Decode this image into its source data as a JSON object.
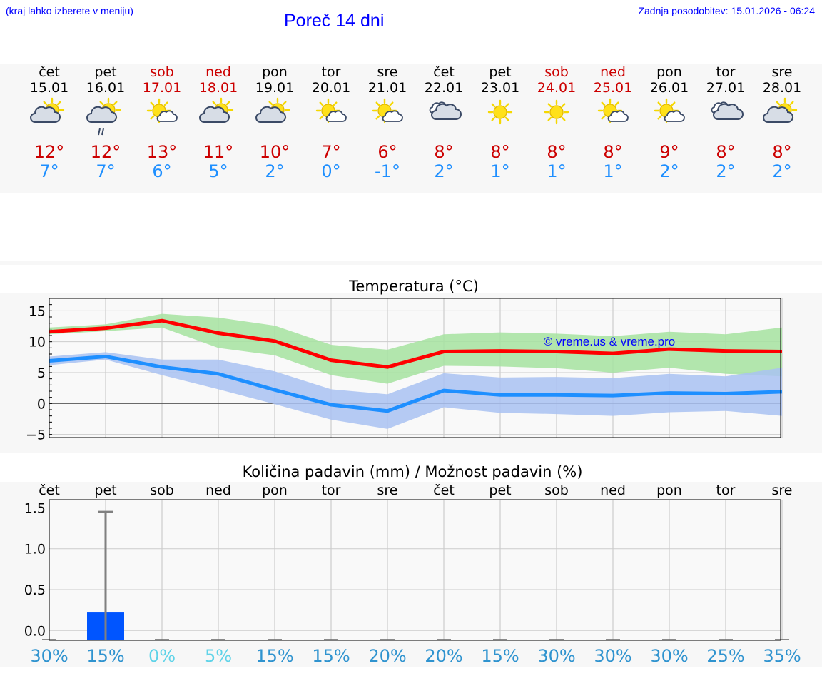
{
  "header": {
    "note": "(kraj lahko izberete v meniju)",
    "title": "Poreč 14 dni",
    "updated": "Zadnja posodobitev: 15.01.2026 - 06:24"
  },
  "colors": {
    "weekend": "#cc0000",
    "weekday": "#000000",
    "max_temp": "#cc0000",
    "min_temp": "#1e8fff",
    "max_line": "#ff0000",
    "min_line": "#1e8fff",
    "max_band": "#a6e3a0",
    "min_band": "#a9c2f2",
    "rain_bar": "#0055ff",
    "credit": "#0000ff"
  },
  "days": [
    {
      "dow": "čet",
      "date": "15.01",
      "weekend": false,
      "icon": "sun-cloud-icon",
      "tmax": "12°",
      "tmin": "7°"
    },
    {
      "dow": "pet",
      "date": "16.01",
      "weekend": false,
      "icon": "sun-cloud-rain-icon",
      "tmax": "12°",
      "tmin": "7°"
    },
    {
      "dow": "sob",
      "date": "17.01",
      "weekend": true,
      "icon": "sun-small-cloud-icon",
      "tmax": "13°",
      "tmin": "6°"
    },
    {
      "dow": "ned",
      "date": "18.01",
      "weekend": true,
      "icon": "sun-cloud-icon",
      "tmax": "11°",
      "tmin": "5°"
    },
    {
      "dow": "pon",
      "date": "19.01",
      "weekend": false,
      "icon": "sun-cloud-icon",
      "tmax": "10°",
      "tmin": "2°"
    },
    {
      "dow": "tor",
      "date": "20.01",
      "weekend": false,
      "icon": "sun-small-cloud-icon",
      "tmax": "7°",
      "tmin": "0°"
    },
    {
      "dow": "sre",
      "date": "21.01",
      "weekend": false,
      "icon": "sun-small-cloud-icon",
      "tmax": "6°",
      "tmin": "-1°"
    },
    {
      "dow": "čet",
      "date": "22.01",
      "weekend": false,
      "icon": "cloudy-icon",
      "tmax": "8°",
      "tmin": "2°"
    },
    {
      "dow": "pet",
      "date": "23.01",
      "weekend": false,
      "icon": "sun-icon",
      "tmax": "8°",
      "tmin": "1°"
    },
    {
      "dow": "sob",
      "date": "24.01",
      "weekend": true,
      "icon": "sun-icon",
      "tmax": "8°",
      "tmin": "1°"
    },
    {
      "dow": "ned",
      "date": "25.01",
      "weekend": true,
      "icon": "sun-small-cloud-icon",
      "tmax": "8°",
      "tmin": "1°"
    },
    {
      "dow": "pon",
      "date": "26.01",
      "weekend": false,
      "icon": "sun-small-cloud-icon",
      "tmax": "9°",
      "tmin": "2°"
    },
    {
      "dow": "tor",
      "date": "27.01",
      "weekend": false,
      "icon": "cloudy-icon",
      "tmax": "8°",
      "tmin": "2°"
    },
    {
      "dow": "sre",
      "date": "28.01",
      "weekend": false,
      "icon": "sun-cloud-icon",
      "tmax": "8°",
      "tmin": "2°"
    }
  ],
  "chart_data": [
    {
      "type": "line",
      "title": "Temperatura (°C)",
      "xlabel": "",
      "ylabel": "",
      "ylim": [
        -5.5,
        17
      ],
      "yticks": [
        -5,
        0,
        5,
        10,
        15
      ],
      "grid": true,
      "categories": [
        "15.01",
        "16.01",
        "17.01",
        "18.01",
        "19.01",
        "20.01",
        "21.01",
        "22.01",
        "23.01",
        "24.01",
        "25.01",
        "26.01",
        "27.01",
        "28.01"
      ],
      "series": [
        {
          "name": "max",
          "values": [
            11.6,
            12.2,
            13.4,
            11.4,
            10.1,
            7.0,
            5.9,
            8.4,
            8.5,
            8.4,
            8.1,
            8.8,
            8.5,
            8.4
          ]
        },
        {
          "name": "min",
          "values": [
            6.9,
            7.6,
            5.9,
            4.8,
            2.2,
            -0.2,
            -1.2,
            2.1,
            1.4,
            1.4,
            1.3,
            1.7,
            1.6,
            1.9
          ]
        }
      ],
      "bands": [
        {
          "name": "max_range",
          "low": [
            11.2,
            11.7,
            12.3,
            9.0,
            7.8,
            4.6,
            3.2,
            6.1,
            6.0,
            5.7,
            5.0,
            5.8,
            4.8,
            4.4
          ],
          "high": [
            12.3,
            12.8,
            14.5,
            13.9,
            12.6,
            9.5,
            8.7,
            11.2,
            11.5,
            11.3,
            10.9,
            11.6,
            11.2,
            12.3
          ]
        },
        {
          "name": "min_range",
          "low": [
            6.2,
            7.1,
            4.6,
            2.3,
            -0.1,
            -2.6,
            -4.1,
            -0.6,
            -1.5,
            -1.7,
            -2.0,
            -1.4,
            -1.2,
            -2.0
          ],
          "high": [
            7.6,
            8.3,
            7.1,
            7.1,
            5.2,
            2.3,
            1.5,
            4.9,
            4.2,
            4.3,
            4.1,
            4.8,
            4.4,
            5.8
          ]
        }
      ],
      "annotation": "© vreme.us & vreme.pro"
    },
    {
      "type": "bar",
      "title": "Količina padavin (mm) / Možnost padavin (%)",
      "xlabel": "",
      "ylabel": "",
      "ylim": [
        -0.12,
        1.6
      ],
      "yticks": [
        0.0,
        0.5,
        1.0,
        1.5
      ],
      "ytick_labels": [
        "0.0",
        "0.5",
        "1.0",
        "1.5"
      ],
      "grid": true,
      "categories": [
        "čet",
        "pet",
        "sob",
        "ned",
        "pon",
        "tor",
        "sre",
        "čet",
        "pet",
        "sob",
        "ned",
        "pon",
        "tor",
        "sre"
      ],
      "values": [
        0.0,
        0.22,
        0.0,
        0.0,
        0.0,
        0.0,
        0.0,
        0.0,
        0.0,
        0.0,
        0.0,
        0.0,
        0.0,
        0.0
      ],
      "error_max": [
        0,
        1.45,
        0,
        0,
        0,
        0,
        0,
        0,
        0,
        0,
        0,
        0,
        0,
        0
      ],
      "probability_labels": [
        "30%",
        "15%",
        "0%",
        "5%",
        "15%",
        "15%",
        "20%",
        "20%",
        "15%",
        "30%",
        "30%",
        "30%",
        "25%",
        "35%"
      ],
      "probability_values": [
        30,
        15,
        0,
        5,
        15,
        15,
        20,
        20,
        15,
        30,
        30,
        30,
        25,
        35
      ]
    }
  ]
}
